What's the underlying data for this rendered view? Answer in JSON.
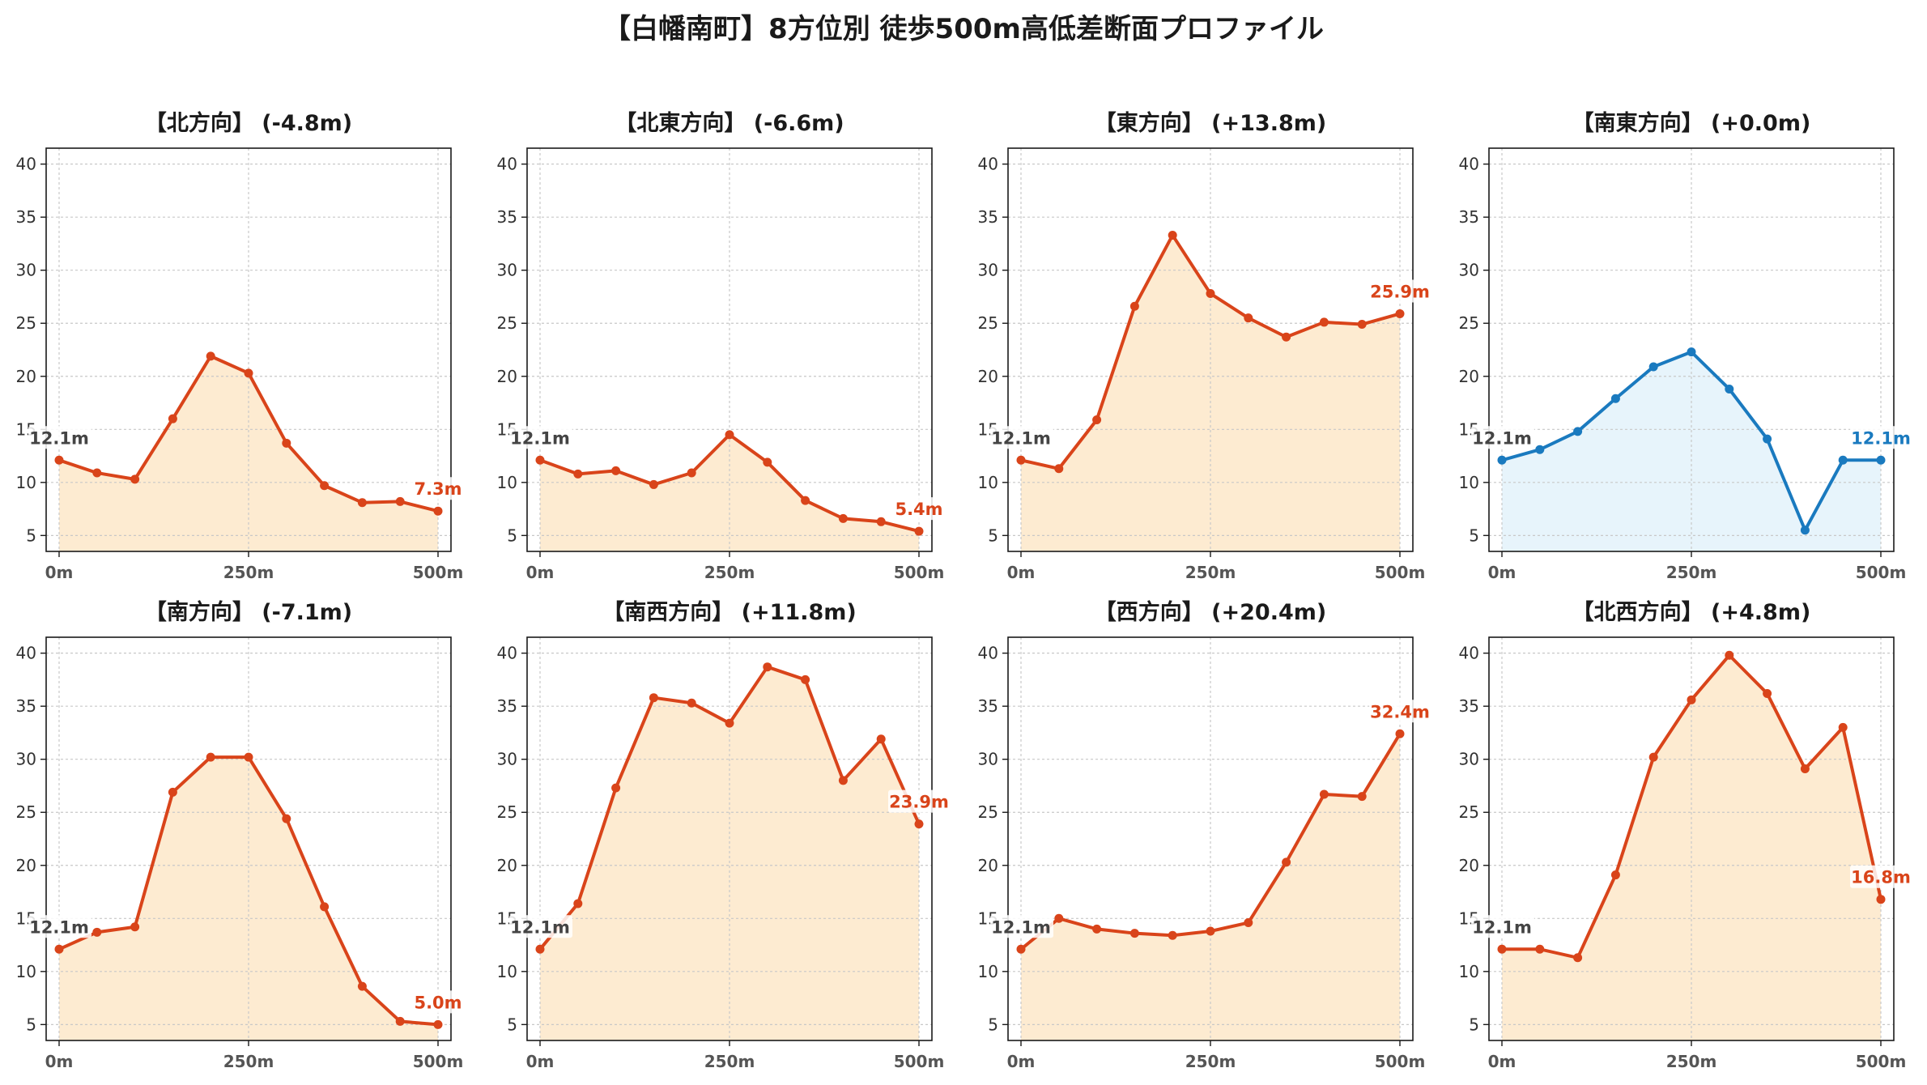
{
  "title": "【白幡南町】8方位別 徒歩500m高低差断面プロファイル",
  "colors": {
    "up": "#d9441a",
    "up_fill": "#fdebd1",
    "flat": "#1a7abf",
    "flat_fill": "#e7f4fb",
    "start_label": "#444444"
  },
  "chart_data": [
    {
      "type": "area",
      "title": "【北方向】 (-4.8m)",
      "x": [
        0,
        50,
        100,
        150,
        200,
        250,
        300,
        350,
        400,
        450,
        500
      ],
      "values": [
        12.1,
        10.9,
        10.3,
        16.0,
        21.9,
        20.3,
        13.7,
        9.7,
        8.1,
        8.2,
        7.3
      ],
      "xticks": [
        "0m",
        "250m",
        "500m"
      ],
      "yticks": [
        5,
        10,
        15,
        20,
        25,
        30,
        35,
        40
      ],
      "ylim": [
        3.5,
        41.5
      ],
      "start_label": "12.1m",
      "end_label": "7.3m",
      "color": "up"
    },
    {
      "type": "area",
      "title": "【北東方向】 (-6.6m)",
      "x": [
        0,
        50,
        100,
        150,
        200,
        250,
        300,
        350,
        400,
        450,
        500
      ],
      "values": [
        12.1,
        10.8,
        11.1,
        9.8,
        10.9,
        14.5,
        11.9,
        8.3,
        6.6,
        6.3,
        5.4
      ],
      "xticks": [
        "0m",
        "250m",
        "500m"
      ],
      "yticks": [
        5,
        10,
        15,
        20,
        25,
        30,
        35,
        40
      ],
      "ylim": [
        3.5,
        41.5
      ],
      "start_label": "12.1m",
      "end_label": "5.4m",
      "color": "up"
    },
    {
      "type": "area",
      "title": "【東方向】 (+13.8m)",
      "x": [
        0,
        50,
        100,
        150,
        200,
        250,
        300,
        350,
        400,
        450,
        500
      ],
      "values": [
        12.1,
        11.3,
        15.9,
        26.6,
        33.3,
        27.8,
        25.5,
        23.7,
        25.1,
        24.9,
        25.9
      ],
      "xticks": [
        "0m",
        "250m",
        "500m"
      ],
      "yticks": [
        5,
        10,
        15,
        20,
        25,
        30,
        35,
        40
      ],
      "ylim": [
        3.5,
        41.5
      ],
      "start_label": "12.1m",
      "end_label": "25.9m",
      "color": "up"
    },
    {
      "type": "area",
      "title": "【南東方向】 (+0.0m)",
      "x": [
        0,
        50,
        100,
        150,
        200,
        250,
        300,
        350,
        400,
        450,
        500
      ],
      "values": [
        12.1,
        13.1,
        14.8,
        17.9,
        20.9,
        22.3,
        18.8,
        14.1,
        5.5,
        12.1,
        12.1
      ],
      "xticks": [
        "0m",
        "250m",
        "500m"
      ],
      "yticks": [
        5,
        10,
        15,
        20,
        25,
        30,
        35,
        40
      ],
      "ylim": [
        3.5,
        41.5
      ],
      "start_label": "12.1m",
      "end_label": "12.1m",
      "color": "flat"
    },
    {
      "type": "area",
      "title": "【南方向】 (-7.1m)",
      "x": [
        0,
        50,
        100,
        150,
        200,
        250,
        300,
        350,
        400,
        450,
        500
      ],
      "values": [
        12.1,
        13.7,
        14.2,
        26.9,
        30.2,
        30.2,
        24.4,
        16.1,
        8.6,
        5.3,
        5.0
      ],
      "xticks": [
        "0m",
        "250m",
        "500m"
      ],
      "yticks": [
        5,
        10,
        15,
        20,
        25,
        30,
        35,
        40
      ],
      "ylim": [
        3.5,
        41.5
      ],
      "start_label": "12.1m",
      "end_label": "5.0m",
      "color": "up"
    },
    {
      "type": "area",
      "title": "【南西方向】 (+11.8m)",
      "x": [
        0,
        50,
        100,
        150,
        200,
        250,
        300,
        350,
        400,
        450,
        500
      ],
      "values": [
        12.1,
        16.4,
        27.3,
        35.8,
        35.3,
        33.4,
        38.7,
        37.5,
        28.0,
        31.9,
        23.9
      ],
      "xticks": [
        "0m",
        "250m",
        "500m"
      ],
      "yticks": [
        5,
        10,
        15,
        20,
        25,
        30,
        35,
        40
      ],
      "ylim": [
        3.5,
        41.5
      ],
      "start_label": "12.1m",
      "end_label": "23.9m",
      "color": "up"
    },
    {
      "type": "area",
      "title": "【西方向】 (+20.4m)",
      "x": [
        0,
        50,
        100,
        150,
        200,
        250,
        300,
        350,
        400,
        450,
        500
      ],
      "values": [
        12.1,
        15.0,
        14.0,
        13.6,
        13.4,
        13.8,
        14.6,
        20.3,
        26.7,
        26.5,
        32.4
      ],
      "xticks": [
        "0m",
        "250m",
        "500m"
      ],
      "yticks": [
        5,
        10,
        15,
        20,
        25,
        30,
        35,
        40
      ],
      "ylim": [
        3.5,
        41.5
      ],
      "start_label": "12.1m",
      "end_label": "32.4m",
      "color": "up"
    },
    {
      "type": "area",
      "title": "【北西方向】 (+4.8m)",
      "x": [
        0,
        50,
        100,
        150,
        200,
        250,
        300,
        350,
        400,
        450,
        500
      ],
      "values": [
        12.1,
        12.1,
        11.3,
        19.1,
        30.2,
        35.6,
        39.8,
        36.2,
        29.1,
        33.0,
        16.8
      ],
      "xticks": [
        "0m",
        "250m",
        "500m"
      ],
      "yticks": [
        5,
        10,
        15,
        20,
        25,
        30,
        35,
        40
      ],
      "ylim": [
        3.5,
        41.5
      ],
      "start_label": "12.1m",
      "end_label": "16.8m",
      "color": "up"
    }
  ]
}
